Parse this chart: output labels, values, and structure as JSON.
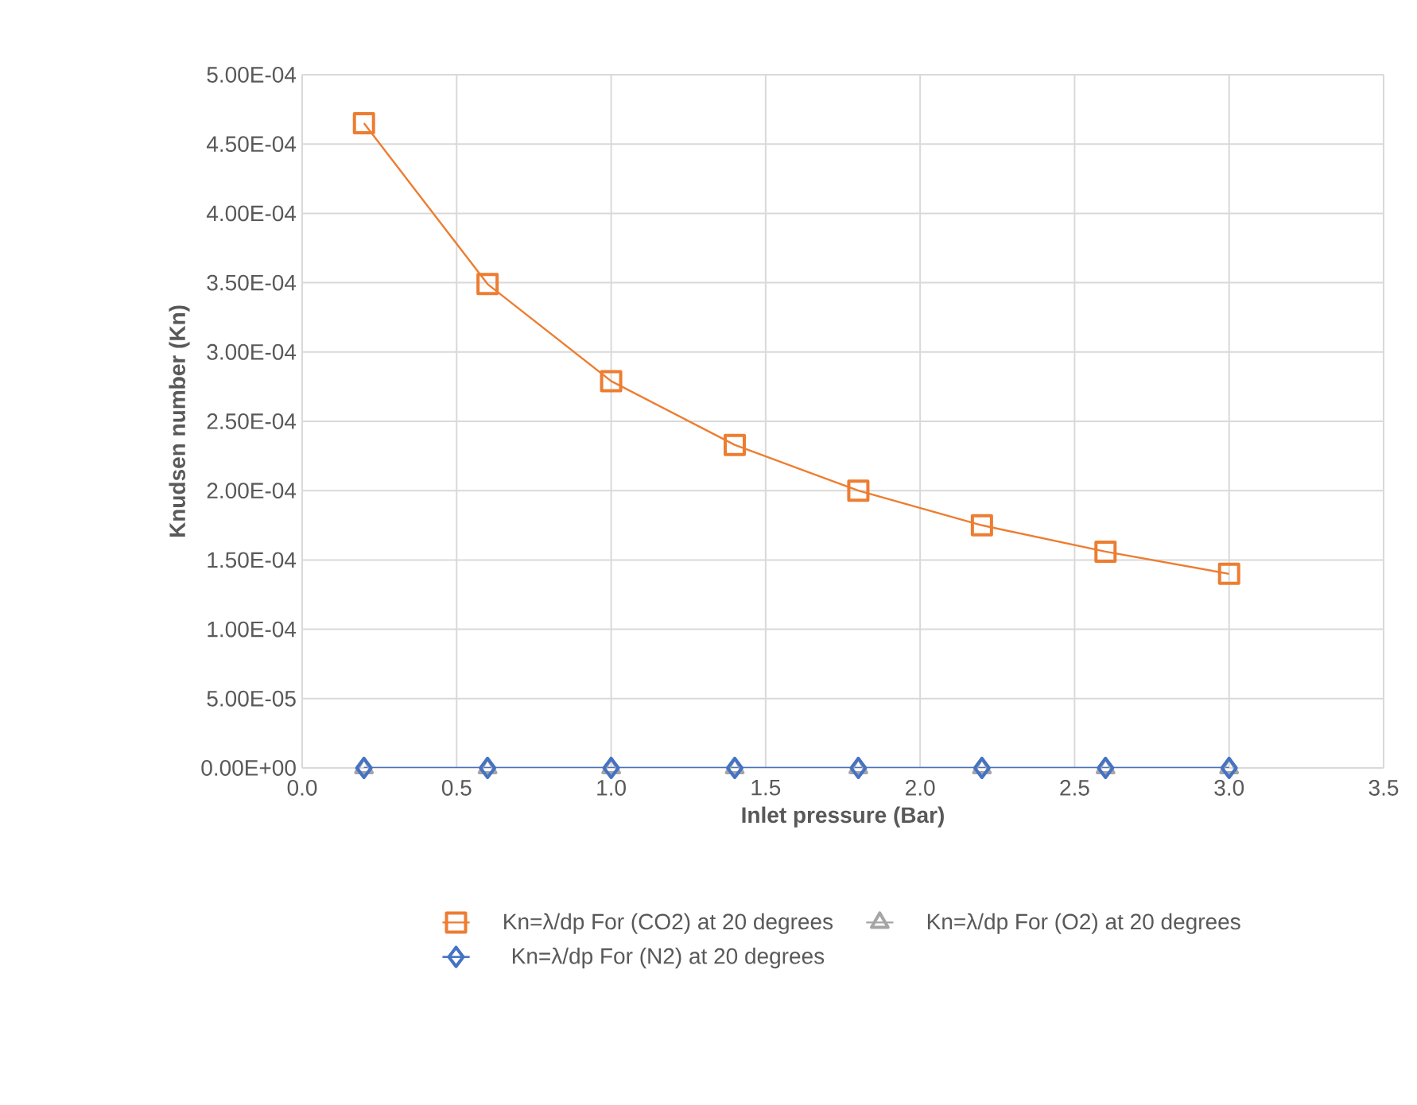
{
  "chart_data": {
    "type": "line",
    "xlabel": "Inlet pressure (Bar)",
    "ylabel": "Knudsen number (Kn)",
    "x": [
      0.2,
      0.6,
      1.0,
      1.4,
      1.8,
      2.2,
      2.6,
      3.0
    ],
    "series": [
      {
        "name": "Kn=λ/dp  For  (CO2) at 20 degrees",
        "color": "#ed7d31",
        "marker": "square",
        "values": [
          0.000465,
          0.000349,
          0.000279,
          0.000233,
          0.0002,
          0.000175,
          0.000156,
          0.00014
        ]
      },
      {
        "name": "Kn=λ/dp  For  (O2) at 20 degrees",
        "color": "#a5a5a5",
        "marker": "triangle",
        "values": [
          0,
          0,
          0,
          0,
          0,
          0,
          0,
          0
        ]
      },
      {
        "name": "Kn=λ/dp  For  (N2) at 20 degrees",
        "color": "#4472c4",
        "marker": "diamond",
        "values": [
          0,
          0,
          0,
          0,
          0,
          0,
          0,
          0
        ]
      }
    ],
    "xlim": [
      0,
      3.5
    ],
    "xticks": [
      {
        "value": 0,
        "label": "0.0"
      },
      {
        "value": 0.5,
        "label": "0.5"
      },
      {
        "value": 1,
        "label": "1.0"
      },
      {
        "value": 1.5,
        "label": "1.5"
      },
      {
        "value": 2,
        "label": "2.0"
      },
      {
        "value": 2.5,
        "label": "2.5"
      },
      {
        "value": 3,
        "label": "3.0"
      },
      {
        "value": 3.5,
        "label": "3.5"
      }
    ],
    "ylim": [
      0,
      0.0005
    ],
    "yticks": [
      {
        "value": 0,
        "label": "0.00E+00"
      },
      {
        "value": 5e-05,
        "label": "5.00E-05"
      },
      {
        "value": 0.0001,
        "label": "1.00E-04"
      },
      {
        "value": 0.00015,
        "label": "1.50E-04"
      },
      {
        "value": 0.0002,
        "label": "2.00E-04"
      },
      {
        "value": 0.00025,
        "label": "2.50E-04"
      },
      {
        "value": 0.0003,
        "label": "3.00E-04"
      },
      {
        "value": 0.00035,
        "label": "3.50E-04"
      },
      {
        "value": 0.0004,
        "label": "4.00E-04"
      },
      {
        "value": 0.00045,
        "label": "4.50E-04"
      },
      {
        "value": 0.0005,
        "label": "5.00E-04"
      }
    ],
    "grid": true,
    "legend": "bottom",
    "line_style": "solid"
  }
}
